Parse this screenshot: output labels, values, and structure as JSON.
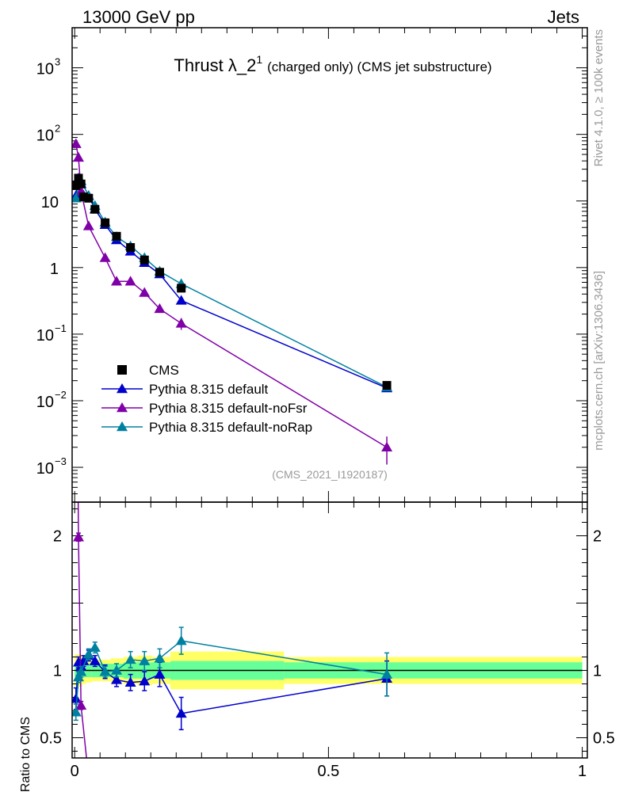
{
  "header": {
    "left": "13000 GeV pp",
    "right": "Jets"
  },
  "side_labels": {
    "rivet": "Rivet 4.1.0, ≥ 100k events",
    "mcplots": "mcplots.cern.ch [arXiv:1306.3436]"
  },
  "chart_data": {
    "type": "line",
    "title": "Thrust λ_2",
    "title_sup": "1",
    "title_suffix": "(charged only) (CMS jet substructure)",
    "analysis_tag": "(CMS_2021_I1920187)",
    "xlabel": "",
    "ylabel_main": "",
    "ylabel_ratio": "Ratio to CMS",
    "xlim": [
      -0.005,
      1.01
    ],
    "ylim_main": [
      0.0003,
      4000
    ],
    "ylim_ratio": [
      0.35,
      2.25
    ],
    "yscale_main": "log",
    "x_tick_labels": [
      "0",
      "0.5",
      "1"
    ],
    "y_tick_labels_main": [
      {
        "base": "10",
        "exp": "3"
      },
      {
        "base": "10",
        "exp": "2"
      },
      {
        "base": "10",
        "exp": ""
      },
      {
        "base": "1",
        "exp": ""
      },
      {
        "base": "10",
        "exp": "−1"
      },
      {
        "base": "10",
        "exp": "−2"
      },
      {
        "base": "10",
        "exp": "−3"
      }
    ],
    "y_tick_labels_ratio": [
      "2",
      "1",
      "0.5"
    ],
    "legend": {
      "placement": "lower-left",
      "entries": [
        "CMS",
        "Pythia 8.315 default",
        "Pythia 8.315 default-noFsr",
        "Pythia 8.315 default-noRap"
      ]
    },
    "colors": {
      "data": "#000000",
      "default": "#0000cc",
      "noFsr": "#8000a8",
      "noRap": "#0080a0",
      "band_inner": "#66ff99",
      "band_outer": "#ffff66"
    },
    "data": {
      "name": "CMS",
      "x": [
        0.0025,
        0.0075,
        0.0125,
        0.0175,
        0.0275,
        0.04,
        0.06,
        0.0825,
        0.11,
        0.1375,
        0.1675,
        0.21,
        0.615
      ],
      "y": [
        17,
        22,
        18,
        11.5,
        11,
        7.5,
        4.7,
        2.95,
        2.0,
        1.3,
        0.85,
        0.49,
        0.017
      ],
      "rel_err_inner": [
        0.05,
        0.05,
        0.05,
        0.05,
        0.05,
        0.05,
        0.05,
        0.05,
        0.06,
        0.06,
        0.06,
        0.07,
        0.06
      ],
      "rel_err_outer": [
        0.12,
        0.12,
        0.12,
        0.1,
        0.09,
        0.08,
        0.08,
        0.09,
        0.1,
        0.11,
        0.1,
        0.14,
        0.1
      ]
    },
    "series": [
      {
        "name": "Pythia 8.315 default",
        "x": [
          0.0025,
          0.0075,
          0.0125,
          0.0175,
          0.0275,
          0.04,
          0.06,
          0.0825,
          0.11,
          0.1375,
          0.1675,
          0.21,
          0.615
        ],
        "y": [
          12,
          22,
          18,
          12.2,
          12,
          7.5,
          4.4,
          2.6,
          1.75,
          1.18,
          0.8,
          0.32,
          0.0155
        ],
        "ratio": [
          0.79,
          1.06,
          1.03,
          1.07,
          1.11,
          1.07,
          0.99,
          0.93,
          0.91,
          0.92,
          0.97,
          0.68,
          0.94
        ],
        "ratio_err": [
          0.08,
          0.04,
          0.04,
          0.04,
          0.04,
          0.04,
          0.05,
          0.05,
          0.06,
          0.07,
          0.09,
          0.12,
          0.13
        ]
      },
      {
        "name": "Pythia 8.315 default-noFsr",
        "x": [
          0.0025,
          0.0075,
          0.0125,
          0.0275,
          0.06,
          0.0825,
          0.11,
          0.1375,
          0.1675,
          0.21,
          0.615
        ],
        "y": [
          72,
          45,
          14,
          4.2,
          1.4,
          0.62,
          0.62,
          0.42,
          0.24,
          0.145,
          0.002
        ],
        "ratio": [
          4.4,
          1.99,
          0.74,
          0.2,
          0.25,
          0.2,
          0.2,
          0.2,
          0.2,
          0.2,
          0.12
        ],
        "ratio_err": [
          0.08,
          0.03,
          0.03,
          0.02,
          0.02,
          0.02,
          0.02,
          0.02,
          0.02,
          0.02,
          0.04
        ]
      },
      {
        "name": "Pythia 8.315 default-noRap",
        "x": [
          0.0025,
          0.0075,
          0.0125,
          0.0275,
          0.04,
          0.06,
          0.0825,
          0.11,
          0.1375,
          0.1675,
          0.21,
          0.615
        ],
        "y": [
          11,
          18,
          20,
          12,
          8.5,
          4.8,
          2.9,
          2.1,
          1.4,
          0.88,
          0.57,
          0.016
        ],
        "ratio": [
          0.69,
          0.95,
          0.99,
          1.12,
          1.17,
          0.99,
          1.0,
          1.08,
          1.07,
          1.09,
          1.22,
          0.97
        ],
        "ratio_err": [
          0.06,
          0.04,
          0.04,
          0.04,
          0.04,
          0.04,
          0.05,
          0.06,
          0.07,
          0.07,
          0.1,
          0.16
        ]
      }
    ]
  }
}
